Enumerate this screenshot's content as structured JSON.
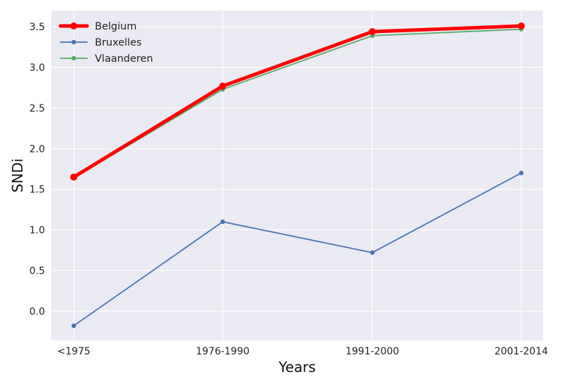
{
  "chart_data": {
    "type": "line",
    "title": "",
    "xlabel": "Years",
    "ylabel": "SNDi",
    "categories": [
      "<1975",
      "1976-1990",
      "1991-2000",
      "2001-2014"
    ],
    "ylim": [
      -0.36,
      3.7
    ],
    "yticks": [
      0.0,
      0.5,
      1.0,
      1.5,
      2.0,
      2.5,
      3.0,
      3.5
    ],
    "ytick_labels": [
      "0.0",
      "0.5",
      "1.0",
      "1.5",
      "2.0",
      "2.5",
      "3.0",
      "3.5"
    ],
    "grid": true,
    "legend_position": "top-left",
    "background": "#EAEAF2",
    "series": [
      {
        "name": "Belgium",
        "values": [
          1.65,
          2.77,
          3.44,
          3.51
        ],
        "color": "#FF0000",
        "emphasis": "thick"
      },
      {
        "name": "Bruxelles",
        "values": [
          -0.18,
          1.1,
          0.72,
          1.7
        ],
        "color": "#4C72B0",
        "emphasis": "normal"
      },
      {
        "name": "Vlaanderen",
        "values": [
          1.64,
          2.73,
          3.39,
          3.47
        ],
        "color": "#55A868",
        "emphasis": "normal"
      }
    ]
  }
}
